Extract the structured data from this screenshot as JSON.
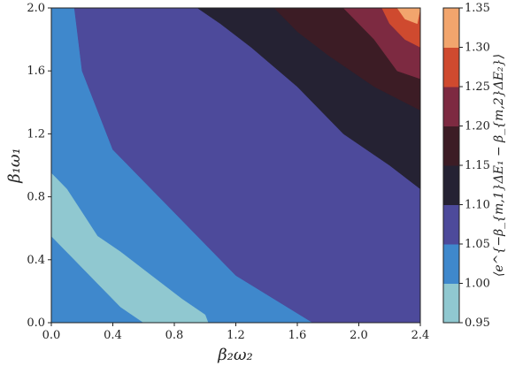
{
  "chart_data": {
    "type": "heatmap",
    "subtype": "filled-contour",
    "title": "",
    "xlabel": "β₂ω₂",
    "ylabel": "β₁ω₁",
    "xlim": [
      0.0,
      2.4
    ],
    "ylim": [
      0.0,
      2.0
    ],
    "x_ticks": [
      "0.0",
      "0.4",
      "0.8",
      "1.2",
      "1.6",
      "2.0",
      "2.4"
    ],
    "y_ticks": [
      "0.0",
      "0.4",
      "0.8",
      "1.2",
      "1.6",
      "2.0"
    ],
    "colorbar": {
      "label": "⟨e^{−β_{m,1}ΔE₁ − β_{m,2}ΔE₂}⟩",
      "levels": [
        0.95,
        1.0,
        1.05,
        1.1,
        1.15,
        1.2,
        1.25,
        1.3,
        1.35
      ],
      "tick_labels": [
        "0.95",
        "1.00",
        "1.05",
        "1.10",
        "1.15",
        "1.20",
        "1.25",
        "1.30",
        "1.35"
      ],
      "colors": [
        "#90c8d0",
        "#3f88cc",
        "#4d4a9b",
        "#252233",
        "#3c1c25",
        "#7d2a41",
        "#cf4a2f",
        "#f2a56d"
      ]
    },
    "regions": [
      {
        "band": [
          1.05,
          1.1
        ],
        "polygon": [
          [
            0.0,
            2.0
          ],
          [
            2.4,
            2.0
          ],
          [
            2.4,
            0.0
          ],
          [
            1.7,
            0.0
          ],
          [
            1.2,
            0.3
          ],
          [
            0.8,
            0.7
          ],
          [
            0.4,
            1.1
          ],
          [
            0.2,
            1.6
          ],
          [
            0.15,
            2.0
          ]
        ]
      },
      {
        "band": [
          1.1,
          1.15
        ],
        "polygon": [
          [
            0.95,
            2.0
          ],
          [
            2.4,
            2.0
          ],
          [
            2.4,
            0.85
          ],
          [
            2.2,
            1.0
          ],
          [
            1.9,
            1.2
          ],
          [
            1.6,
            1.5
          ],
          [
            1.3,
            1.75
          ],
          [
            1.1,
            1.9
          ]
        ]
      },
      {
        "band": [
          1.15,
          1.2
        ],
        "polygon": [
          [
            1.45,
            2.0
          ],
          [
            2.4,
            2.0
          ],
          [
            2.4,
            1.35
          ],
          [
            2.1,
            1.5
          ],
          [
            1.8,
            1.7
          ],
          [
            1.6,
            1.85
          ]
        ]
      },
      {
        "band": [
          1.2,
          1.25
        ],
        "polygon": [
          [
            1.9,
            2.0
          ],
          [
            2.4,
            2.0
          ],
          [
            2.4,
            1.55
          ],
          [
            2.25,
            1.6
          ],
          [
            2.1,
            1.8
          ],
          [
            2.0,
            1.9
          ]
        ]
      },
      {
        "band": [
          1.25,
          1.3
        ],
        "polygon": [
          [
            2.15,
            2.0
          ],
          [
            2.4,
            2.0
          ],
          [
            2.4,
            1.75
          ],
          [
            2.3,
            1.8
          ],
          [
            2.2,
            1.9
          ]
        ]
      },
      {
        "band": [
          1.3,
          1.35
        ],
        "polygon": [
          [
            2.25,
            2.0
          ],
          [
            2.4,
            2.0
          ],
          [
            2.38,
            1.9
          ],
          [
            2.3,
            1.93
          ]
        ]
      },
      {
        "band": [
          0.95,
          1.0
        ],
        "polygon": [
          [
            0.0,
            0.95
          ],
          [
            0.1,
            0.85
          ],
          [
            0.2,
            0.7
          ],
          [
            0.3,
            0.55
          ],
          [
            0.45,
            0.45
          ],
          [
            0.65,
            0.3
          ],
          [
            0.85,
            0.15
          ],
          [
            1.0,
            0.05
          ],
          [
            1.02,
            0.0
          ],
          [
            0.6,
            0.0
          ],
          [
            0.45,
            0.1
          ],
          [
            0.3,
            0.25
          ],
          [
            0.15,
            0.4
          ],
          [
            0.05,
            0.5
          ],
          [
            0.0,
            0.55
          ]
        ]
      }
    ]
  }
}
